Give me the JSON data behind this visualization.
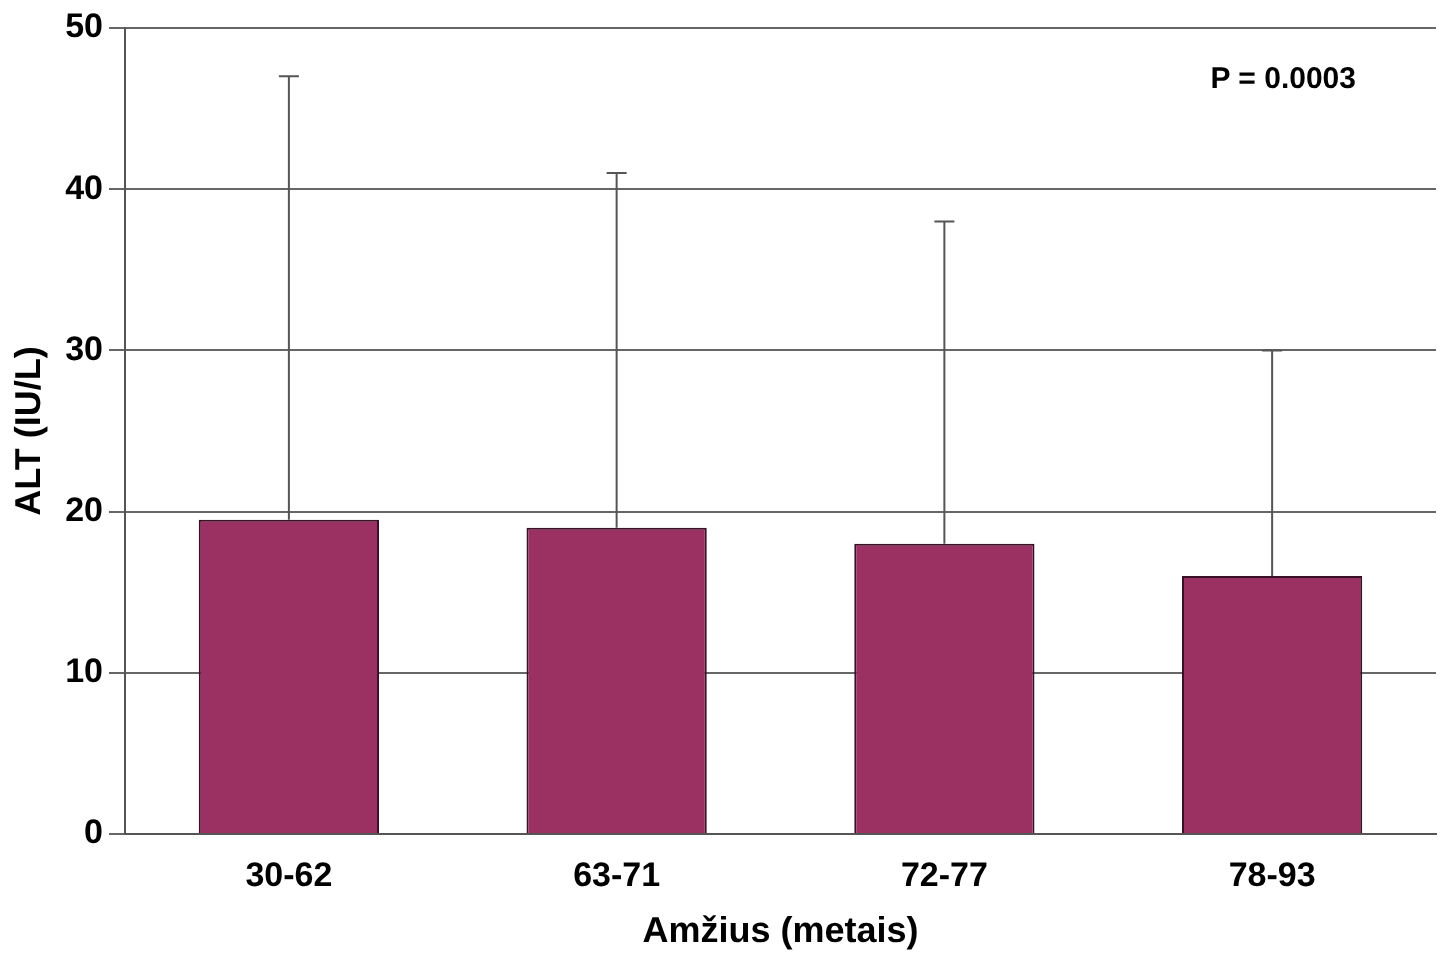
{
  "chart_data": {
    "type": "bar",
    "xlabel": "Amžius (metais)",
    "ylabel": "ALT (IU/L)",
    "categories": [
      "30-62",
      "63-71",
      "72-77",
      "78-93"
    ],
    "values": [
      19.5,
      19,
      18,
      16
    ],
    "errors": [
      [
        19.5,
        47
      ],
      [
        19,
        41
      ],
      [
        18,
        38
      ],
      [
        16,
        30
      ]
    ],
    "color": "#9b3163",
    "ylim": [
      0,
      50
    ],
    "yticks": [
      0,
      10,
      20,
      30,
      40,
      50
    ],
    "grid": "y",
    "annotations": [
      "P = 0.0003"
    ]
  }
}
